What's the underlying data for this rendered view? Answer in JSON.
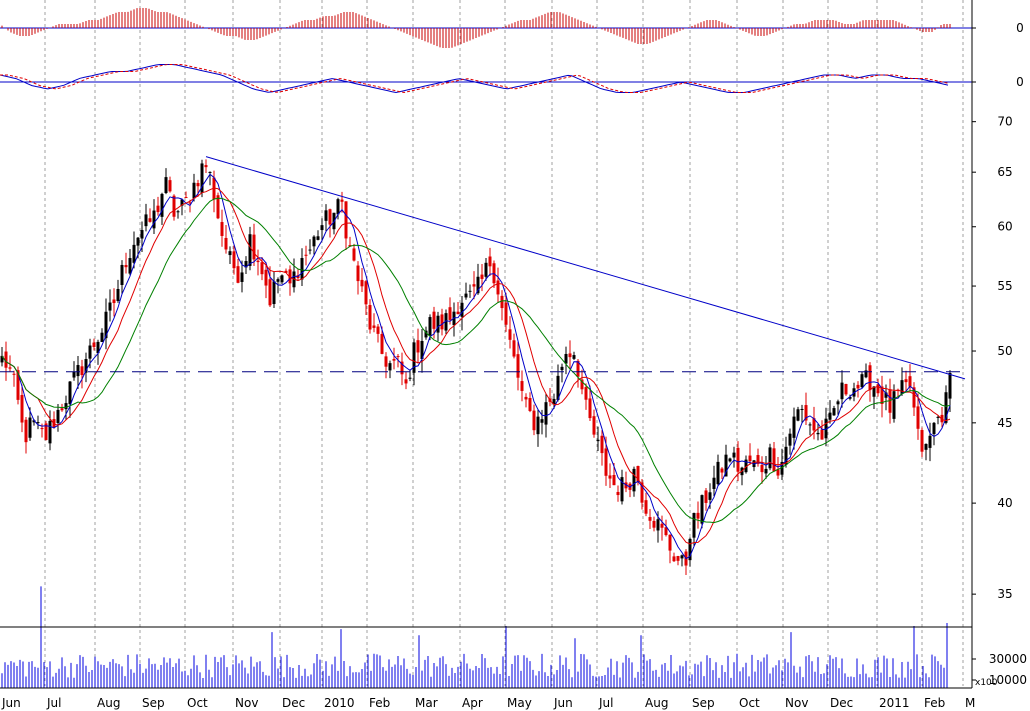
{
  "colors": {
    "background": "#ffffff",
    "grid": "#a0a0a0",
    "frame": "#000000",
    "up_candle": "#000000",
    "down_candle": "#e00000",
    "ma_fast": "#0000c8",
    "ma_mid": "#e00000",
    "ma_slow": "#008000",
    "trendline": "#0000c8",
    "support": "#000080",
    "histogram": "#c80000",
    "oscillator": "#0000c8",
    "oscillator_signal": "#e00000",
    "volume": "#0000e0"
  },
  "chart_data": [
    {
      "type": "candlestick",
      "x": [
        "Jun",
        "Jul",
        "Aug",
        "Sep",
        "Oct",
        "Nov",
        "Dec",
        "2010",
        "Feb",
        "Mar",
        "Apr",
        "May",
        "Jun",
        "Jul",
        "Aug",
        "Sep",
        "Oct",
        "Nov",
        "Dec",
        "2011",
        "Feb",
        "M"
      ],
      "y_ticks": [
        "70",
        "65",
        "60",
        "55",
        "50",
        "45",
        "40",
        "35"
      ],
      "ylim": [
        33.5,
        71
      ],
      "log_scale": true,
      "grid": true,
      "close_anchors": [
        [
          0,
          49.5
        ],
        [
          8,
          49
        ],
        [
          16,
          47
        ],
        [
          24,
          44
        ],
        [
          32,
          45
        ],
        [
          45,
          44
        ],
        [
          60,
          46
        ],
        [
          75,
          48
        ],
        [
          90,
          50
        ],
        [
          105,
          52
        ],
        [
          115,
          54
        ],
        [
          125,
          57
        ],
        [
          135,
          59
        ],
        [
          145,
          60
        ],
        [
          155,
          61
        ],
        [
          165,
          64
        ],
        [
          175,
          61
        ],
        [
          185,
          62
        ],
        [
          195,
          64
        ],
        [
          205,
          66
        ],
        [
          212,
          64
        ],
        [
          220,
          60
        ],
        [
          230,
          57
        ],
        [
          240,
          56
        ],
        [
          250,
          59
        ],
        [
          260,
          57
        ],
        [
          270,
          54
        ],
        [
          280,
          56
        ],
        [
          290,
          55
        ],
        [
          300,
          57
        ],
        [
          310,
          58
        ],
        [
          320,
          60
        ],
        [
          332,
          61
        ],
        [
          342,
          62
        ],
        [
          350,
          58
        ],
        [
          360,
          55
        ],
        [
          370,
          52
        ],
        [
          380,
          50
        ],
        [
          390,
          49
        ],
        [
          400,
          49
        ],
        [
          405,
          47
        ],
        [
          412,
          49.5
        ],
        [
          420,
          51
        ],
        [
          430,
          52
        ],
        [
          440,
          52
        ],
        [
          450,
          52.5
        ],
        [
          460,
          54
        ],
        [
          470,
          54
        ],
        [
          480,
          55
        ],
        [
          490,
          57
        ],
        [
          495,
          56
        ],
        [
          505,
          52
        ],
        [
          515,
          49
        ],
        [
          525,
          46
        ],
        [
          535,
          45
        ],
        [
          545,
          46
        ],
        [
          555,
          47
        ],
        [
          565,
          50
        ],
        [
          575,
          50
        ],
        [
          585,
          46
        ],
        [
          595,
          44
        ],
        [
          605,
          42
        ],
        [
          615,
          41
        ],
        [
          625,
          41
        ],
        [
          635,
          42
        ],
        [
          645,
          40
        ],
        [
          655,
          39
        ],
        [
          665,
          38
        ],
        [
          675,
          37
        ],
        [
          685,
          36.3
        ],
        [
          690,
          38.5
        ],
        [
          700,
          39.5
        ],
        [
          710,
          41
        ],
        [
          720,
          42
        ],
        [
          730,
          43
        ],
        [
          740,
          42
        ],
        [
          750,
          42.5
        ],
        [
          760,
          42
        ],
        [
          770,
          43
        ],
        [
          780,
          42
        ],
        [
          790,
          44.5
        ],
        [
          800,
          46
        ],
        [
          810,
          45
        ],
        [
          820,
          44
        ],
        [
          830,
          45
        ],
        [
          840,
          47
        ],
        [
          850,
          47.5
        ],
        [
          860,
          47.5
        ],
        [
          870,
          48
        ],
        [
          880,
          47
        ],
        [
          890,
          46
        ],
        [
          900,
          47
        ],
        [
          910,
          47.5
        ],
        [
          918,
          44
        ],
        [
          925,
          43
        ],
        [
          935,
          45
        ],
        [
          945,
          46
        ],
        [
          950,
          48
        ]
      ],
      "trendline": {
        "from": [
          206,
          66.5
        ],
        "to": [
          965,
          48
        ]
      },
      "support_level": 48.5
    },
    {
      "type": "bar",
      "panel": "histogram",
      "zero_label": "0",
      "values": [
        1,
        -1,
        -2,
        -2,
        -1,
        0,
        1,
        1,
        1,
        2,
        2,
        3,
        4,
        4,
        5,
        5,
        4,
        4,
        3,
        2,
        1,
        0,
        -1,
        -2,
        -2,
        -3,
        -3,
        -2,
        -1,
        0,
        1,
        2,
        2,
        3,
        3,
        4,
        4,
        3,
        2,
        1,
        0,
        -1,
        -2,
        -3,
        -4,
        -5,
        -5,
        -4,
        -3,
        -2,
        -1,
        0,
        1,
        2,
        2,
        3,
        4,
        4,
        3,
        2,
        1,
        0,
        -1,
        -2,
        -3,
        -4,
        -4,
        -3,
        -2,
        -1,
        0,
        1,
        2,
        2,
        1,
        0,
        -1,
        -2,
        -2,
        -1,
        0,
        1,
        1,
        2,
        2,
        2,
        1,
        1,
        2,
        2,
        2,
        2,
        1,
        0,
        -1,
        -1,
        1,
        1
      ]
    },
    {
      "type": "line",
      "panel": "oscillator",
      "zero_label": "0",
      "values": [
        2,
        1,
        -1,
        -2,
        -1,
        1,
        2,
        3,
        3,
        4,
        5,
        5,
        4,
        3,
        2,
        0,
        -2,
        -3,
        -2,
        -1,
        0,
        1,
        0,
        -1,
        -2,
        -3,
        -2,
        -1,
        0,
        1,
        0,
        -1,
        -2,
        -1,
        0,
        1,
        2,
        0,
        -2,
        -3,
        -3,
        -2,
        -1,
        0,
        -1,
        -2,
        -3,
        -3,
        -2,
        -1,
        0,
        1,
        2,
        2,
        1,
        2,
        2,
        1,
        1,
        0,
        -1
      ]
    },
    {
      "type": "bar",
      "panel": "volume",
      "y_ticks": [
        "30000",
        "10000"
      ],
      "multiplier_label": "x100",
      "spikes": [
        [
          40,
          3.0
        ],
        [
          272,
          1.5
        ],
        [
          340,
          1.6
        ],
        [
          420,
          1.4
        ],
        [
          505,
          1.7
        ],
        [
          575,
          1.3
        ],
        [
          640,
          1.4
        ],
        [
          790,
          1.5
        ],
        [
          915,
          1.7
        ],
        [
          948,
          1.8
        ]
      ]
    }
  ]
}
